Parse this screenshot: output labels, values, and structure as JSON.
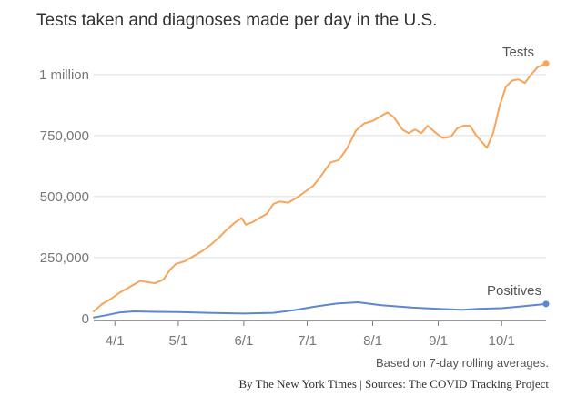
{
  "colors": {
    "tests": "#f6a55a",
    "positives": "#5b87d3",
    "grid": "#dddddd",
    "axis": "#777777",
    "text": "#777777"
  },
  "chart_data": {
    "type": "line",
    "title": "Tests taken and diagnoses made per day in the U.S.",
    "xlabel": "",
    "ylabel": "",
    "x_range": [
      "2020-03-22",
      "2020-10-22"
    ],
    "ylim": [
      0,
      1100000
    ],
    "y_ticks": [
      {
        "value": 0,
        "label": "0"
      },
      {
        "value": 250000,
        "label": "250,000"
      },
      {
        "value": 500000,
        "label": "500,000"
      },
      {
        "value": 750000,
        "label": "750,000"
      },
      {
        "value": 1000000,
        "label": "1 million"
      }
    ],
    "x_ticks": [
      {
        "date": "2020-04-01",
        "label": "4/1"
      },
      {
        "date": "2020-05-01",
        "label": "5/1"
      },
      {
        "date": "2020-06-01",
        "label": "6/1"
      },
      {
        "date": "2020-07-01",
        "label": "7/1"
      },
      {
        "date": "2020-08-01",
        "label": "8/1"
      },
      {
        "date": "2020-09-01",
        "label": "9/1"
      },
      {
        "date": "2020-10-01",
        "label": "10/1"
      }
    ],
    "grid": true,
    "series": [
      {
        "name": "Tests",
        "points": [
          [
            "2020-03-22",
            30000
          ],
          [
            "2020-03-26",
            60000
          ],
          [
            "2020-03-30",
            80000
          ],
          [
            "2020-04-03",
            105000
          ],
          [
            "2020-04-07",
            125000
          ],
          [
            "2020-04-10",
            140000
          ],
          [
            "2020-04-13",
            155000
          ],
          [
            "2020-04-16",
            150000
          ],
          [
            "2020-04-20",
            145000
          ],
          [
            "2020-04-24",
            160000
          ],
          [
            "2020-04-27",
            200000
          ],
          [
            "2020-04-30",
            225000
          ],
          [
            "2020-05-04",
            235000
          ],
          [
            "2020-05-08",
            255000
          ],
          [
            "2020-05-12",
            275000
          ],
          [
            "2020-05-16",
            300000
          ],
          [
            "2020-05-20",
            330000
          ],
          [
            "2020-05-24",
            365000
          ],
          [
            "2020-05-28",
            395000
          ],
          [
            "2020-05-31",
            412000
          ],
          [
            "2020-06-02",
            385000
          ],
          [
            "2020-06-05",
            395000
          ],
          [
            "2020-06-08",
            410000
          ],
          [
            "2020-06-12",
            430000
          ],
          [
            "2020-06-15",
            470000
          ],
          [
            "2020-06-18",
            480000
          ],
          [
            "2020-06-22",
            475000
          ],
          [
            "2020-06-26",
            495000
          ],
          [
            "2020-06-30",
            520000
          ],
          [
            "2020-07-04",
            545000
          ],
          [
            "2020-07-08",
            590000
          ],
          [
            "2020-07-12",
            640000
          ],
          [
            "2020-07-16",
            650000
          ],
          [
            "2020-07-20",
            700000
          ],
          [
            "2020-07-24",
            770000
          ],
          [
            "2020-07-28",
            800000
          ],
          [
            "2020-08-01",
            810000
          ],
          [
            "2020-08-05",
            830000
          ],
          [
            "2020-08-08",
            845000
          ],
          [
            "2020-08-11",
            825000
          ],
          [
            "2020-08-15",
            775000
          ],
          [
            "2020-08-18",
            760000
          ],
          [
            "2020-08-21",
            775000
          ],
          [
            "2020-08-24",
            760000
          ],
          [
            "2020-08-27",
            790000
          ],
          [
            "2020-08-31",
            760000
          ],
          [
            "2020-09-03",
            740000
          ],
          [
            "2020-09-07",
            745000
          ],
          [
            "2020-09-10",
            780000
          ],
          [
            "2020-09-13",
            790000
          ],
          [
            "2020-09-16",
            790000
          ],
          [
            "2020-09-19",
            750000
          ],
          [
            "2020-09-22",
            720000
          ],
          [
            "2020-09-24",
            700000
          ],
          [
            "2020-09-27",
            760000
          ],
          [
            "2020-09-30",
            870000
          ],
          [
            "2020-10-03",
            950000
          ],
          [
            "2020-10-06",
            975000
          ],
          [
            "2020-10-09",
            980000
          ],
          [
            "2020-10-12",
            965000
          ],
          [
            "2020-10-15",
            1000000
          ],
          [
            "2020-10-18",
            1030000
          ],
          [
            "2020-10-22",
            1045000
          ]
        ]
      },
      {
        "name": "Positives",
        "points": [
          [
            "2020-03-22",
            5000
          ],
          [
            "2020-03-28",
            14000
          ],
          [
            "2020-04-03",
            25000
          ],
          [
            "2020-04-10",
            30000
          ],
          [
            "2020-04-20",
            28000
          ],
          [
            "2020-05-01",
            27000
          ],
          [
            "2020-05-15",
            24000
          ],
          [
            "2020-06-01",
            21000
          ],
          [
            "2020-06-15",
            24000
          ],
          [
            "2020-06-25",
            35000
          ],
          [
            "2020-07-05",
            50000
          ],
          [
            "2020-07-15",
            62000
          ],
          [
            "2020-07-25",
            67000
          ],
          [
            "2020-08-05",
            55000
          ],
          [
            "2020-08-20",
            45000
          ],
          [
            "2020-09-01",
            40000
          ],
          [
            "2020-09-12",
            36000
          ],
          [
            "2020-09-20",
            40000
          ],
          [
            "2020-10-01",
            43000
          ],
          [
            "2020-10-10",
            50000
          ],
          [
            "2020-10-22",
            60000
          ]
        ]
      }
    ],
    "annotations": [
      "Based on 7-day rolling averages."
    ],
    "source": "By The New York Times | Sources: The COVID Tracking Project"
  }
}
